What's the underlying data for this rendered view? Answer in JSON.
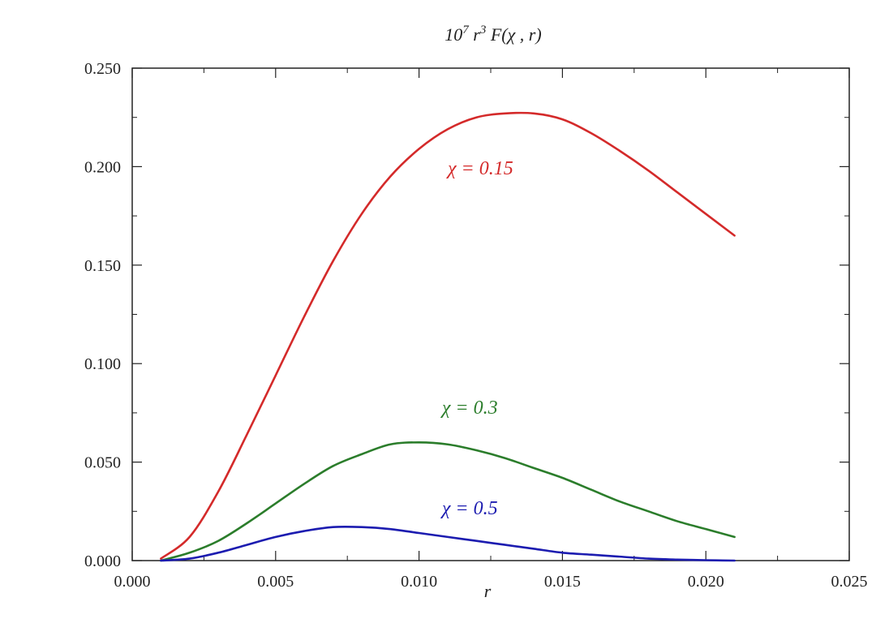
{
  "chart_data": {
    "type": "line",
    "title": {
      "prefix": "10",
      "sup1": "7",
      "mid": " r",
      "sup2": "3",
      "suffix": " F(χ , r)"
    },
    "xlabel": "r",
    "ylabel": "",
    "xlim": [
      0.0,
      0.025
    ],
    "ylim": [
      0.0,
      0.25
    ],
    "xticks": [
      "0.000",
      "0.005",
      "0.010",
      "0.015",
      "0.020",
      "0.025"
    ],
    "yticks": [
      "0.000",
      "0.050",
      "0.100",
      "0.150",
      "0.200",
      "0.250"
    ],
    "grid": false,
    "series": [
      {
        "name": "χ = 0.15",
        "color": "#d42a2a",
        "x": [
          0.001,
          0.002,
          0.003,
          0.004,
          0.005,
          0.006,
          0.007,
          0.008,
          0.009,
          0.01,
          0.011,
          0.012,
          0.013,
          0.014,
          0.015,
          0.016,
          0.017,
          0.018,
          0.019,
          0.02,
          0.021
        ],
        "y": [
          0.001,
          0.012,
          0.035,
          0.064,
          0.094,
          0.124,
          0.152,
          0.176,
          0.195,
          0.209,
          0.219,
          0.225,
          0.227,
          0.227,
          0.224,
          0.217,
          0.208,
          0.198,
          0.187,
          0.176,
          0.165
        ]
      },
      {
        "name": "χ = 0.3",
        "color": "#2b7d2b",
        "x": [
          0.001,
          0.002,
          0.003,
          0.004,
          0.005,
          0.006,
          0.007,
          0.008,
          0.009,
          0.01,
          0.011,
          0.012,
          0.013,
          0.014,
          0.015,
          0.016,
          0.017,
          0.018,
          0.019,
          0.02,
          0.021
        ],
        "y": [
          0.0,
          0.004,
          0.01,
          0.019,
          0.029,
          0.039,
          0.048,
          0.054,
          0.059,
          0.06,
          0.059,
          0.056,
          0.052,
          0.047,
          0.042,
          0.036,
          0.03,
          0.025,
          0.02,
          0.016,
          0.012
        ]
      },
      {
        "name": "χ = 0.5",
        "color": "#1c1cb0",
        "x": [
          0.001,
          0.002,
          0.003,
          0.004,
          0.005,
          0.006,
          0.007,
          0.008,
          0.009,
          0.01,
          0.011,
          0.012,
          0.013,
          0.014,
          0.015,
          0.016,
          0.017,
          0.018,
          0.019,
          0.02,
          0.021
        ],
        "y": [
          0.0,
          0.001,
          0.004,
          0.008,
          0.012,
          0.015,
          0.017,
          0.017,
          0.016,
          0.014,
          0.012,
          0.01,
          0.008,
          0.006,
          0.004,
          0.003,
          0.002,
          0.001,
          0.0005,
          0.0002,
          0.0
        ]
      }
    ],
    "annotations": [
      {
        "text": "χ = 0.15",
        "x": 0.011,
        "y": 0.196,
        "color": "#d42a2a"
      },
      {
        "text": "χ = 0.3",
        "x": 0.0108,
        "y": 0.0745,
        "color": "#2b7d2b"
      },
      {
        "text": "χ = 0.5",
        "x": 0.0108,
        "y": 0.0235,
        "color": "#1c1cb0"
      }
    ]
  }
}
